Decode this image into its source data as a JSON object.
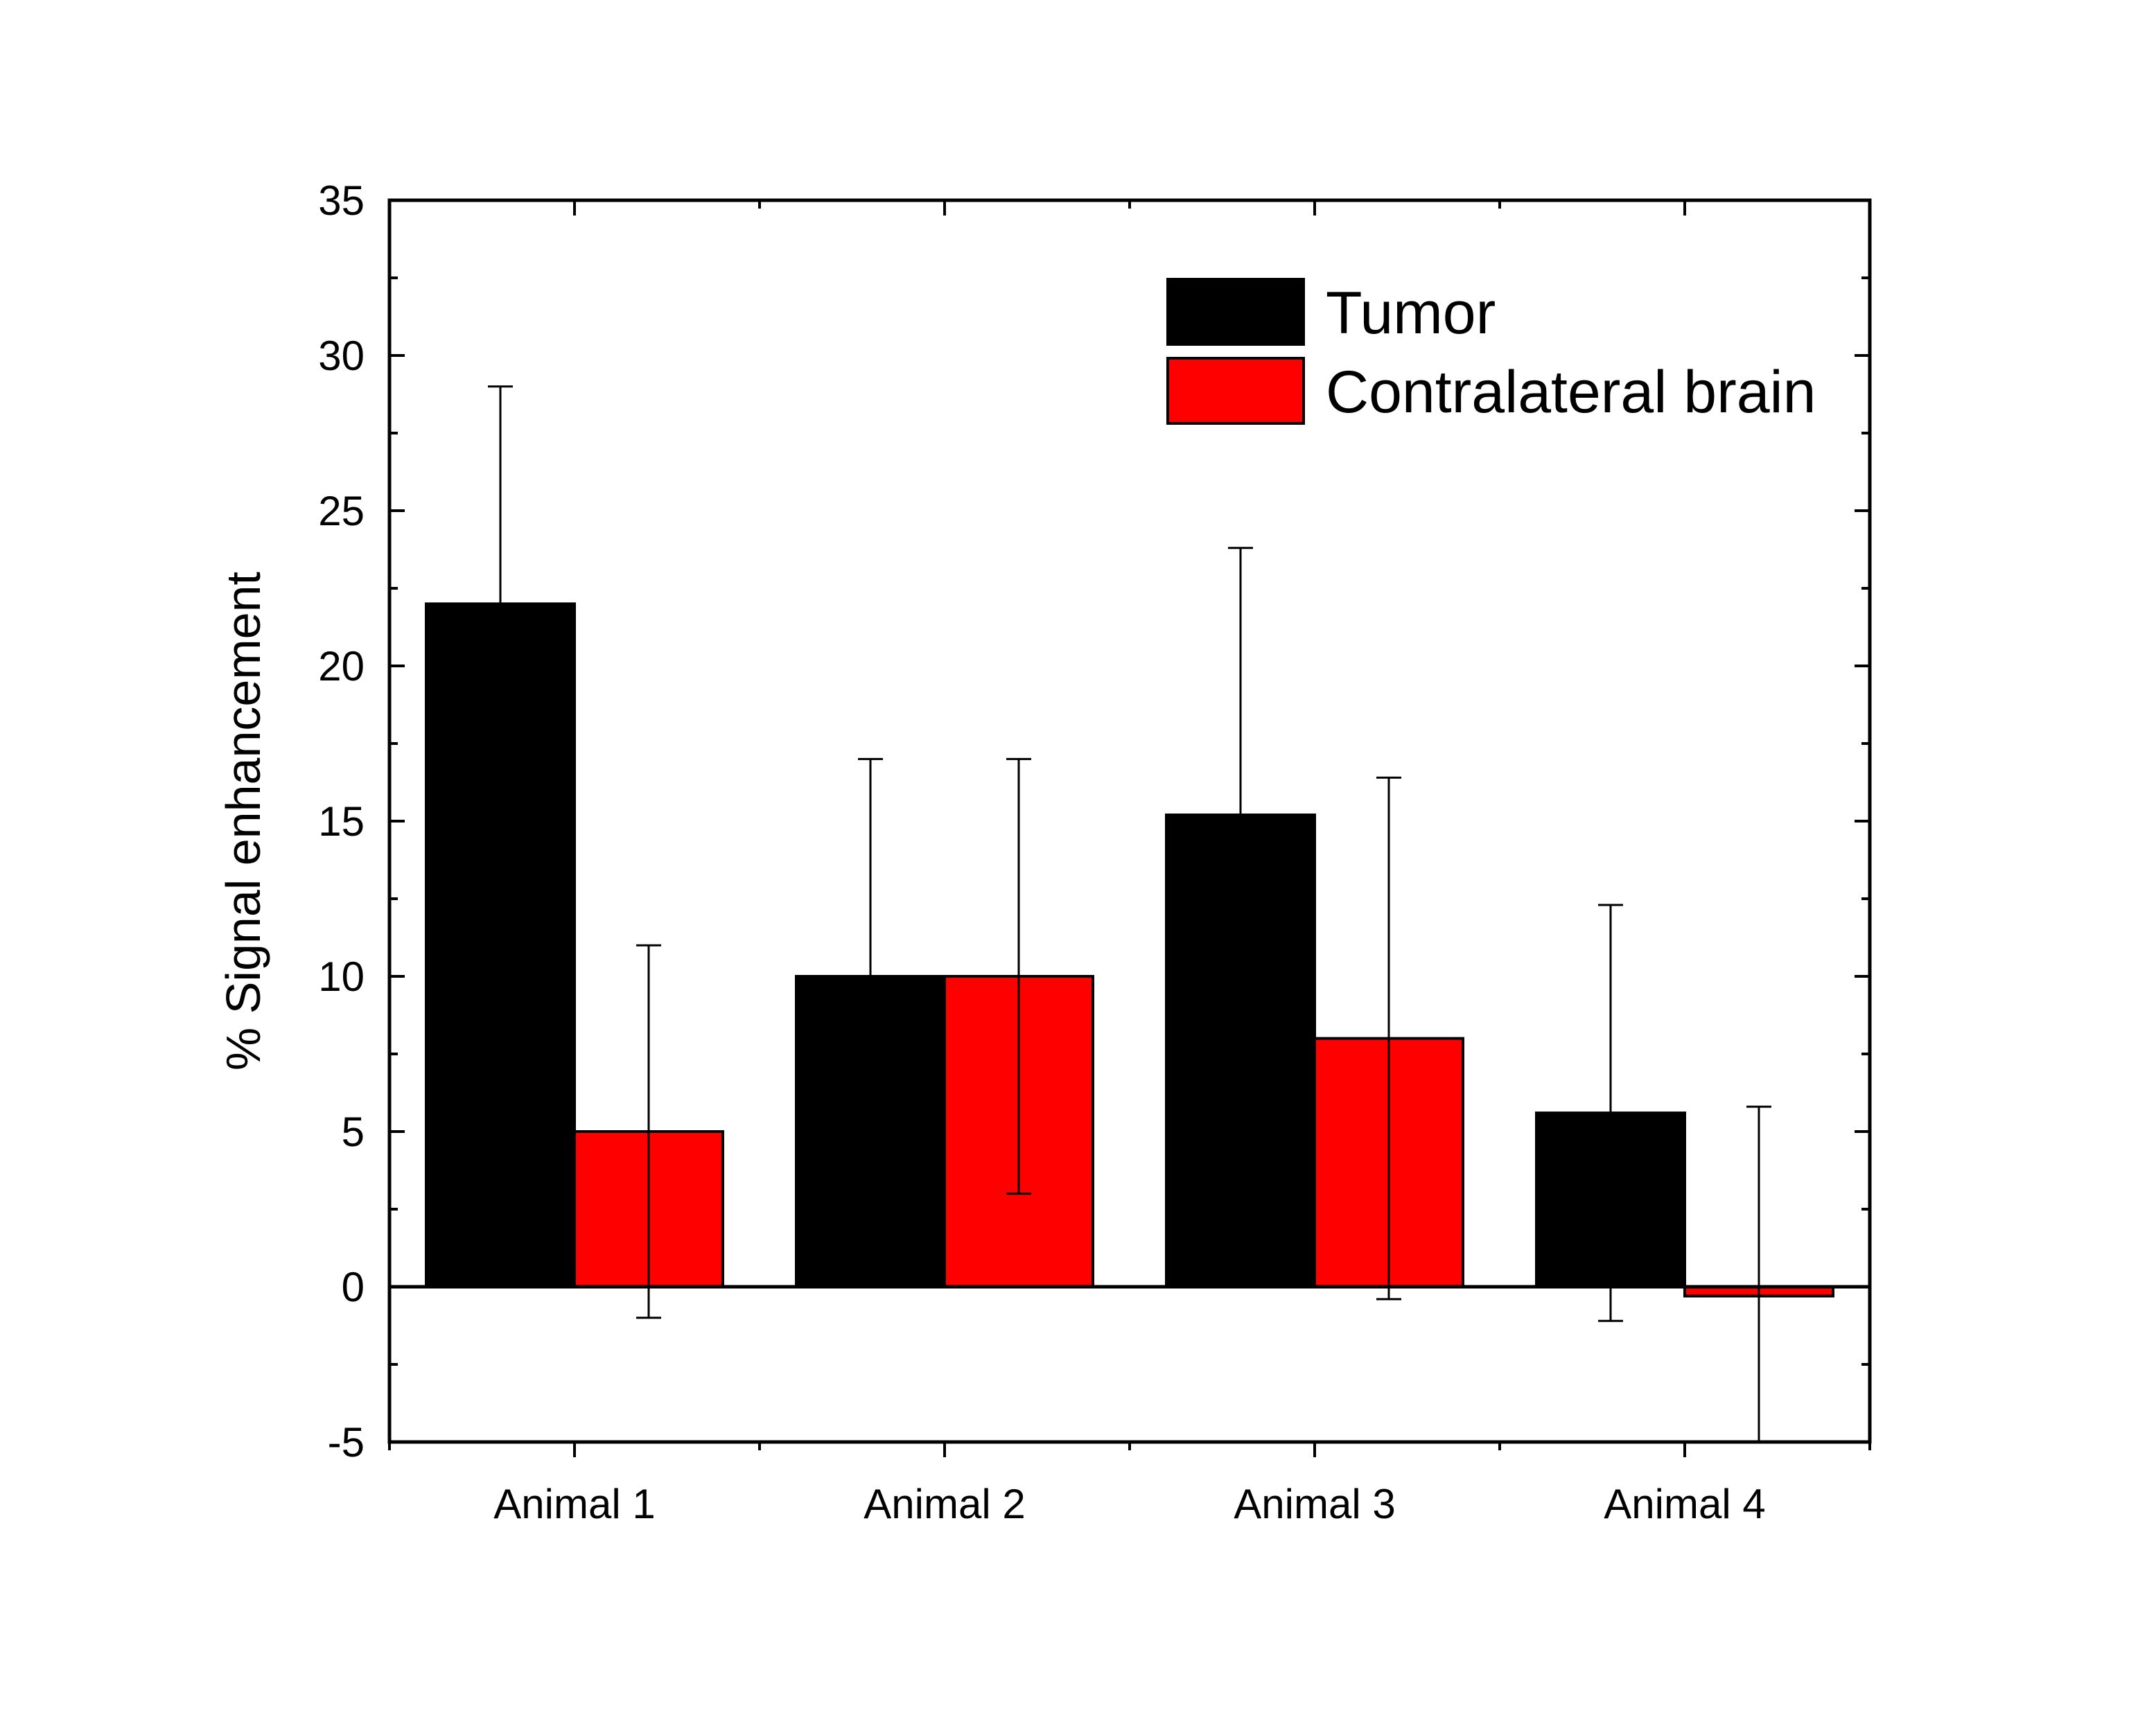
{
  "chart_data": {
    "type": "bar",
    "title": "",
    "xlabel": "",
    "ylabel": "% Signal enhancement",
    "ylim": [
      -5,
      35
    ],
    "yticks": [
      -5,
      0,
      5,
      10,
      15,
      20,
      25,
      30,
      35
    ],
    "categories": [
      "Animal 1",
      "Animal 2",
      "Animal 3",
      "Animal 4"
    ],
    "series": [
      {
        "name": "Tumor",
        "color": "#000000",
        "values": [
          22,
          10,
          15.2,
          5.6
        ],
        "error": [
          7,
          7,
          8.6,
          6.7
        ]
      },
      {
        "name": "Contralateral brain",
        "color": "#ff0000",
        "values": [
          5,
          10,
          8,
          -0.3
        ],
        "error": [
          6,
          7,
          8.4,
          6.1
        ]
      }
    ],
    "grid": false,
    "legend_position": "top-right",
    "error_bars": true,
    "zero_line": true
  }
}
